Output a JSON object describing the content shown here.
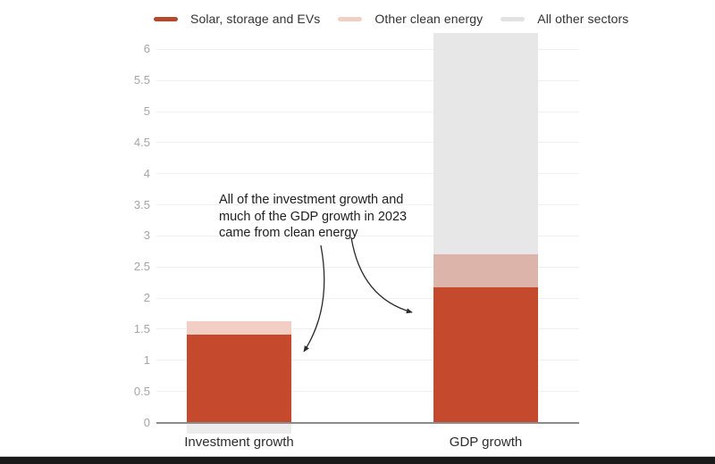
{
  "legend": {
    "items": [
      {
        "label": "Solar, storage and EVs",
        "color": "#b5492e"
      },
      {
        "label": "Other clean energy",
        "color": "#eed0c5"
      },
      {
        "label": "All other sectors",
        "color": "#e2e2e2"
      }
    ]
  },
  "annotation": {
    "lines": [
      "All of the investment growth and",
      "much of the GDP growth in 2023",
      "came from clean energy"
    ]
  },
  "chart_data": {
    "type": "bar",
    "stacked": true,
    "categories": [
      "Investment growth",
      "GDP growth"
    ],
    "series": [
      {
        "name": "Solar, storage and EVs",
        "values": [
          1.41,
          2.17
        ],
        "colors": [
          "#c5492c",
          "#c5492c"
        ]
      },
      {
        "name": "Other clean energy",
        "values": [
          0.22,
          0.54
        ],
        "colors": [
          "#f2cec4",
          "#dcb4aa"
        ]
      },
      {
        "name": "All other sectors",
        "values": [
          -0.17,
          3.55
        ],
        "colors": [
          "#ececec",
          "#e8e7e7"
        ]
      }
    ],
    "title": "",
    "xlabel": "",
    "ylabel": "",
    "ylim": [
      0,
      6
    ],
    "yticks": [
      0,
      0.5,
      1,
      1.5,
      2,
      2.5,
      3,
      3.5,
      4,
      4.5,
      5,
      5.5,
      6
    ],
    "grid": true,
    "legend_position": "top",
    "grid_color": "#eff0f4",
    "axis_color": "#8c8c8c",
    "tick_label_color": "#a8a4a3"
  }
}
